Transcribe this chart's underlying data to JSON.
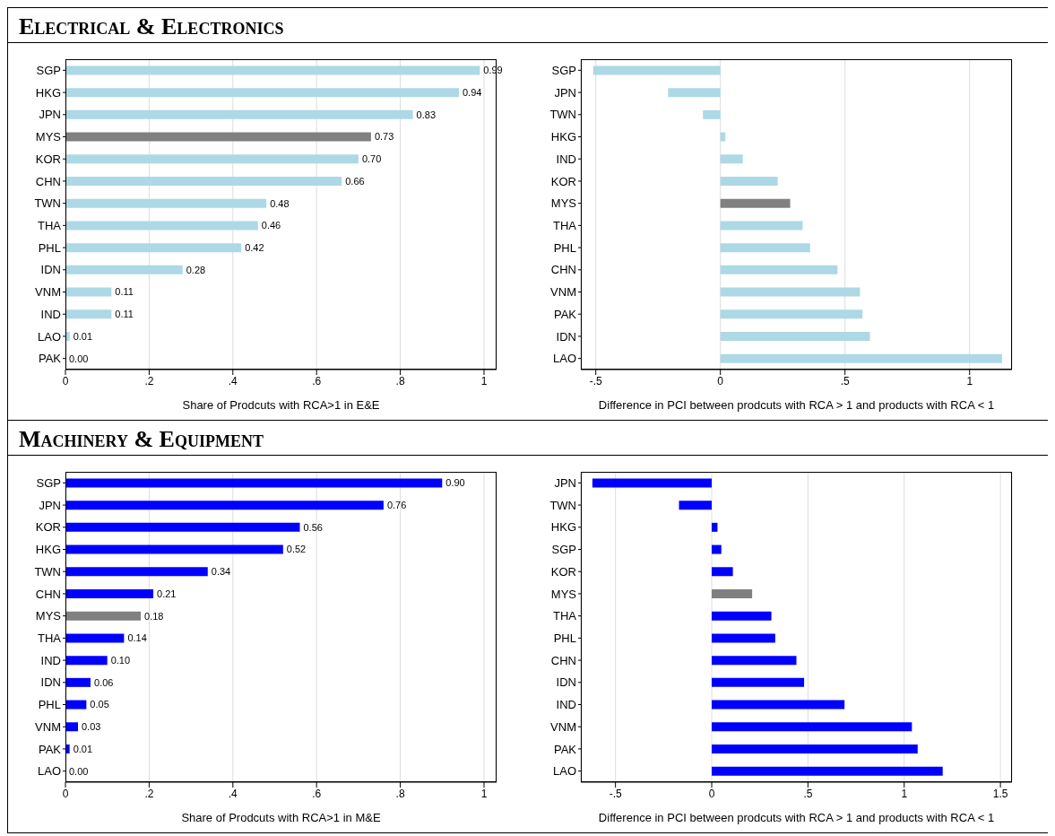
{
  "chart_data": [
    {
      "type": "bar",
      "orientation": "horizontal",
      "title": "Electrical & Electronics",
      "xlabel": "Share of Prodcuts with RCA>1 in E&E",
      "grid": "x",
      "categories": [
        "SGP",
        "HKG",
        "JPN",
        "MYS",
        "KOR",
        "CHN",
        "TWN",
        "THA",
        "PHL",
        "IDN",
        "VNM",
        "IND",
        "LAO",
        "PAK"
      ],
      "values": [
        0.99,
        0.94,
        0.83,
        0.73,
        0.7,
        0.66,
        0.48,
        0.46,
        0.42,
        0.28,
        0.11,
        0.11,
        0.01,
        0.0
      ],
      "value_labels": [
        "0.99",
        "0.94",
        "0.83",
        "0.73",
        "0.70",
        "0.66",
        "0.48",
        "0.46",
        "0.42",
        "0.28",
        "0.11",
        "0.11",
        "0.01",
        "0.00"
      ],
      "colors": [
        "#add8e6",
        "#add8e6",
        "#add8e6",
        "#808080",
        "#add8e6",
        "#add8e6",
        "#add8e6",
        "#add8e6",
        "#add8e6",
        "#add8e6",
        "#add8e6",
        "#add8e6",
        "#add8e6",
        "#add8e6"
      ],
      "xlim": [
        0,
        1.03
      ],
      "xticks": [
        {
          "value": 0,
          "label": "0"
        },
        {
          "value": 0.2,
          "label": ".2"
        },
        {
          "value": 0.4,
          "label": ".4"
        },
        {
          "value": 0.6,
          "label": ".6"
        },
        {
          "value": 0.8,
          "label": ".8"
        },
        {
          "value": 1,
          "label": "1"
        }
      ]
    },
    {
      "type": "bar",
      "orientation": "horizontal",
      "xlabel": "Difference in PCI between prodcuts with RCA > 1 and products with RCA < 1",
      "grid": "x",
      "categories": [
        "SGP",
        "JPN",
        "TWN",
        "HKG",
        "IND",
        "KOR",
        "MYS",
        "THA",
        "PHL",
        "CHN",
        "VNM",
        "PAK",
        "IDN",
        "LAO"
      ],
      "values": [
        -0.51,
        -0.21,
        -0.07,
        0.02,
        0.09,
        0.23,
        0.28,
        0.33,
        0.36,
        0.47,
        0.56,
        0.57,
        0.6,
        1.13
      ],
      "colors": [
        "#add8e6",
        "#add8e6",
        "#add8e6",
        "#add8e6",
        "#add8e6",
        "#add8e6",
        "#808080",
        "#add8e6",
        "#add8e6",
        "#add8e6",
        "#add8e6",
        "#add8e6",
        "#add8e6",
        "#add8e6"
      ],
      "xlim": [
        -0.56,
        1.17
      ],
      "xticks": [
        {
          "value": -0.5,
          "label": "-.5"
        },
        {
          "value": 0,
          "label": "0"
        },
        {
          "value": 0.5,
          "label": ".5"
        },
        {
          "value": 1,
          "label": "1"
        }
      ]
    },
    {
      "type": "bar",
      "orientation": "horizontal",
      "title": "Machinery & Equipment",
      "xlabel": "Share of Prodcuts with RCA>1 in M&E",
      "grid": "x",
      "categories": [
        "SGP",
        "JPN",
        "KOR",
        "HKG",
        "TWN",
        "CHN",
        "MYS",
        "THA",
        "IND",
        "IDN",
        "PHL",
        "VNM",
        "PAK",
        "LAO"
      ],
      "values": [
        0.9,
        0.76,
        0.56,
        0.52,
        0.34,
        0.21,
        0.18,
        0.14,
        0.1,
        0.06,
        0.05,
        0.03,
        0.01,
        0.0
      ],
      "value_labels": [
        "0.90",
        "0.76",
        "0.56",
        "0.52",
        "0.34",
        "0.21",
        "0.18",
        "0.14",
        "0.10",
        "0.06",
        "0.05",
        "0.03",
        "0.01",
        "0.00"
      ],
      "colors": [
        "#0000ff",
        "#0000ff",
        "#0000ff",
        "#0000ff",
        "#0000ff",
        "#0000ff",
        "#808080",
        "#0000ff",
        "#0000ff",
        "#0000ff",
        "#0000ff",
        "#0000ff",
        "#0000ff",
        "#0000ff"
      ],
      "xlim": [
        0,
        1.03
      ],
      "xticks": [
        {
          "value": 0,
          "label": "0"
        },
        {
          "value": 0.2,
          "label": ".2"
        },
        {
          "value": 0.4,
          "label": ".4"
        },
        {
          "value": 0.6,
          "label": ".6"
        },
        {
          "value": 0.8,
          "label": ".8"
        },
        {
          "value": 1,
          "label": "1"
        }
      ]
    },
    {
      "type": "bar",
      "orientation": "horizontal",
      "xlabel": "Difference in PCI between prodcuts with RCA > 1 and products with RCA < 1",
      "grid": "x",
      "categories": [
        "JPN",
        "TWN",
        "HKG",
        "SGP",
        "KOR",
        "MYS",
        "THA",
        "PHL",
        "CHN",
        "IDN",
        "IND",
        "VNM",
        "PAK",
        "LAO"
      ],
      "values": [
        -0.62,
        -0.17,
        0.03,
        0.05,
        0.11,
        0.21,
        0.31,
        0.33,
        0.44,
        0.48,
        0.69,
        1.04,
        1.07,
        1.2
      ],
      "colors": [
        "#0000ff",
        "#0000ff",
        "#0000ff",
        "#0000ff",
        "#0000ff",
        "#808080",
        "#0000ff",
        "#0000ff",
        "#0000ff",
        "#0000ff",
        "#0000ff",
        "#0000ff",
        "#0000ff",
        "#0000ff"
      ],
      "xlim": [
        -0.68,
        1.56
      ],
      "xticks": [
        {
          "value": -0.5,
          "label": "-.5"
        },
        {
          "value": 0,
          "label": "0"
        },
        {
          "value": 0.5,
          "label": ".5"
        },
        {
          "value": 1,
          "label": "1"
        },
        {
          "value": 1.5,
          "label": "1.5"
        }
      ]
    }
  ]
}
